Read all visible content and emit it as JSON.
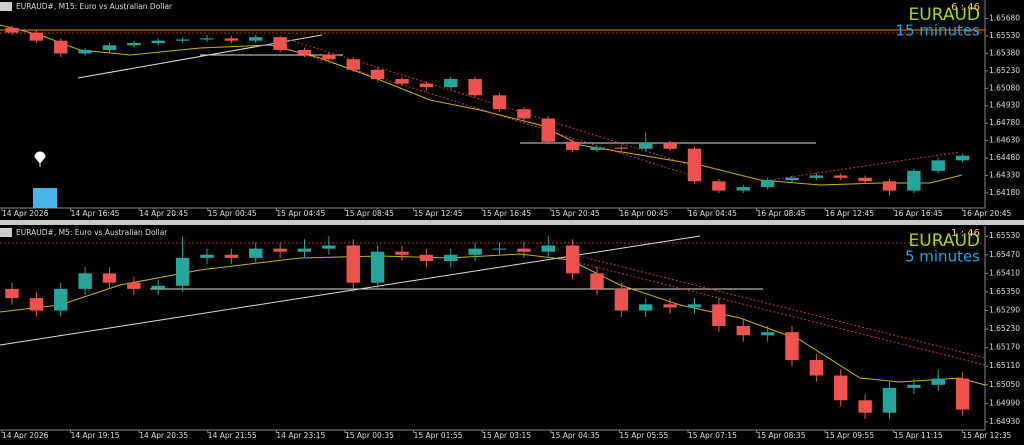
{
  "chart_data": [
    {
      "type": "candlestick",
      "title": "EURAUD#, M15:  Euro vs Australian Dollar",
      "symbol": "EURAUD",
      "timer": "6 : 46",
      "timeframe": "15 minutes",
      "up_color": "#26a69a",
      "down_color": "#ef5350",
      "ylim": [
        1.6405,
        1.6584
      ],
      "yticks": [
        {
          "value": 1.6568,
          "label": "1.65680"
        },
        {
          "value": 1.6553,
          "label": "1.65530"
        },
        {
          "value": 1.6538,
          "label": "1.65380"
        },
        {
          "value": 1.6523,
          "label": "1.65230"
        },
        {
          "value": 1.6508,
          "label": "1.65080"
        },
        {
          "value": 1.6493,
          "label": "1.64930"
        },
        {
          "value": 1.6478,
          "label": "1.64780"
        },
        {
          "value": 1.6463,
          "label": "1.64630"
        },
        {
          "value": 1.6448,
          "label": "1.64480"
        },
        {
          "value": 1.6433,
          "label": "1.64330"
        },
        {
          "value": 1.6418,
          "label": "1.64180"
        }
      ],
      "xtick_labels": [
        "14 Apr 2026",
        "14 Apr 16:45",
        "14 Apr 20:45",
        "15 Apr 00:45",
        "15 Apr 04:45",
        "15 Apr 08:45",
        "15 Apr 12:45",
        "15 Apr 16:45",
        "15 Apr 20:45",
        "16 Apr 00:45",
        "16 Apr 04:45",
        "16 Apr 08:45",
        "16 Apr 12:45",
        "16 Apr 16:45",
        "16 Apr 20:45"
      ],
      "open": [
        1.656,
        1.6556,
        1.6549,
        1.6538,
        1.6541,
        1.6545,
        1.6547,
        1.6549,
        1.655,
        1.6551,
        1.6549,
        1.6552,
        1.6541,
        1.6537,
        1.6533,
        1.6524,
        1.6516,
        1.6512,
        1.6509,
        1.6516,
        1.6502,
        1.649,
        1.6482,
        1.6462,
        1.6455,
        1.6457,
        1.6456,
        1.6461,
        1.6456,
        1.6428,
        1.642,
        1.6423,
        1.6429,
        1.6431,
        1.6433,
        1.6431,
        1.6428,
        1.642,
        1.6437,
        1.6446
      ],
      "high": [
        1.6562,
        1.6558,
        1.6551,
        1.6543,
        1.6547,
        1.6549,
        1.6551,
        1.6552,
        1.6554,
        1.6553,
        1.6554,
        1.6553,
        1.6543,
        1.6539,
        1.6535,
        1.6526,
        1.6518,
        1.6514,
        1.6518,
        1.6518,
        1.6504,
        1.6492,
        1.6484,
        1.6464,
        1.6459,
        1.6459,
        1.647,
        1.6463,
        1.6458,
        1.643,
        1.6425,
        1.6431,
        1.6433,
        1.6435,
        1.6435,
        1.6433,
        1.643,
        1.6439,
        1.6448,
        1.6452
      ],
      "low": [
        1.6554,
        1.6547,
        1.6535,
        1.6536,
        1.6539,
        1.6543,
        1.6545,
        1.6547,
        1.6548,
        1.6547,
        1.6547,
        1.6539,
        1.6535,
        1.6531,
        1.6522,
        1.6514,
        1.651,
        1.6506,
        1.6507,
        1.65,
        1.6488,
        1.648,
        1.646,
        1.6453,
        1.6453,
        1.6454,
        1.6454,
        1.6454,
        1.6426,
        1.6418,
        1.6418,
        1.6421,
        1.6427,
        1.6429,
        1.6429,
        1.6426,
        1.6416,
        1.6418,
        1.6435,
        1.6444
      ],
      "close": [
        1.6556,
        1.6549,
        1.6538,
        1.6541,
        1.6545,
        1.6547,
        1.6549,
        1.655,
        1.6551,
        1.6549,
        1.6552,
        1.6541,
        1.6537,
        1.6533,
        1.6524,
        1.6516,
        1.6512,
        1.6509,
        1.6516,
        1.6502,
        1.649,
        1.6482,
        1.6462,
        1.6455,
        1.6457,
        1.6456,
        1.6461,
        1.6456,
        1.6428,
        1.642,
        1.6423,
        1.6429,
        1.6431,
        1.6433,
        1.6431,
        1.6428,
        1.642,
        1.6437,
        1.6446,
        1.645
      ]
    },
    {
      "type": "candlestick",
      "title": "EURAUD#, M5:  Euro vs Australian Dollar",
      "symbol": "EURAUD",
      "timer": "1 : 46",
      "timeframe": "5 minutes",
      "up_color": "#26a69a",
      "down_color": "#ef5350",
      "ylim": [
        1.64904,
        1.65563
      ],
      "yticks": [
        {
          "value": 1.6553,
          "label": "1.65530"
        },
        {
          "value": 1.6547,
          "label": "1.65470"
        },
        {
          "value": 1.6541,
          "label": "1.65410"
        },
        {
          "value": 1.6535,
          "label": "1.65350"
        },
        {
          "value": 1.6529,
          "label": "1.65290"
        },
        {
          "value": 1.6523,
          "label": "1.65230"
        },
        {
          "value": 1.6517,
          "label": "1.65170"
        },
        {
          "value": 1.6511,
          "label": "1.65110"
        },
        {
          "value": 1.6505,
          "label": "1.65050"
        },
        {
          "value": 1.6499,
          "label": "1.64990"
        },
        {
          "value": 1.6493,
          "label": "1.64930"
        }
      ],
      "xtick_labels": [
        "14 Apr 2026",
        "14 Apr 19:15",
        "14 Apr 20:35",
        "14 Apr 21:55",
        "14 Apr 23:15",
        "15 Apr 00:35",
        "15 Apr 01:55",
        "15 Apr 03:15",
        "15 Apr 04:35",
        "15 Apr 05:55",
        "15 Apr 07:15",
        "15 Apr 08:35",
        "15 Apr 09:55",
        "15 Apr 11:15",
        "15 Apr 12:35"
      ],
      "open": [
        1.6536,
        1.6533,
        1.6529,
        1.6536,
        1.6541,
        1.6538,
        1.6536,
        1.6537,
        1.6546,
        1.6547,
        1.6546,
        1.6549,
        1.6548,
        1.6549,
        1.655,
        1.6538,
        1.6548,
        1.6547,
        1.6545,
        1.6547,
        1.6549,
        1.6549,
        1.6548,
        1.655,
        1.6541,
        1.6536,
        1.6529,
        1.6531,
        1.653,
        1.6531,
        1.6524,
        1.6521,
        1.6522,
        1.6513,
        1.6508,
        1.65,
        1.6496,
        1.6504,
        1.6505,
        1.6507
      ],
      "high": [
        1.6538,
        1.6535,
        1.6538,
        1.6543,
        1.6543,
        1.654,
        1.6539,
        1.6553,
        1.6549,
        1.6549,
        1.6551,
        1.6551,
        1.6552,
        1.6553,
        1.6552,
        1.655,
        1.655,
        1.6549,
        1.6549,
        1.6551,
        1.6551,
        1.6551,
        1.6553,
        1.6552,
        1.6543,
        1.6538,
        1.6533,
        1.6533,
        1.6533,
        1.6533,
        1.6526,
        1.6524,
        1.6524,
        1.6515,
        1.651,
        1.6502,
        1.6506,
        1.6507,
        1.651,
        1.6509
      ],
      "low": [
        1.6531,
        1.6527,
        1.6527,
        1.6534,
        1.6536,
        1.6534,
        1.6534,
        1.6535,
        1.6544,
        1.6544,
        1.6544,
        1.6546,
        1.6546,
        1.6547,
        1.6535,
        1.6536,
        1.6545,
        1.6543,
        1.6543,
        1.6545,
        1.6547,
        1.6546,
        1.6546,
        1.6539,
        1.6534,
        1.6527,
        1.6527,
        1.6528,
        1.6528,
        1.6522,
        1.6519,
        1.6519,
        1.6511,
        1.6506,
        1.6498,
        1.6494,
        1.6494,
        1.6502,
        1.6503,
        1.6495
      ],
      "close": [
        1.6533,
        1.6529,
        1.6536,
        1.6541,
        1.6538,
        1.6536,
        1.6537,
        1.6546,
        1.6547,
        1.6546,
        1.6549,
        1.6548,
        1.6549,
        1.655,
        1.6538,
        1.6548,
        1.6547,
        1.6545,
        1.6547,
        1.6549,
        1.6549,
        1.6548,
        1.655,
        1.6541,
        1.6536,
        1.6529,
        1.6531,
        1.653,
        1.6531,
        1.6524,
        1.6521,
        1.6522,
        1.6513,
        1.6508,
        1.65,
        1.6496,
        1.6504,
        1.6505,
        1.6507,
        1.6497
      ]
    }
  ]
}
